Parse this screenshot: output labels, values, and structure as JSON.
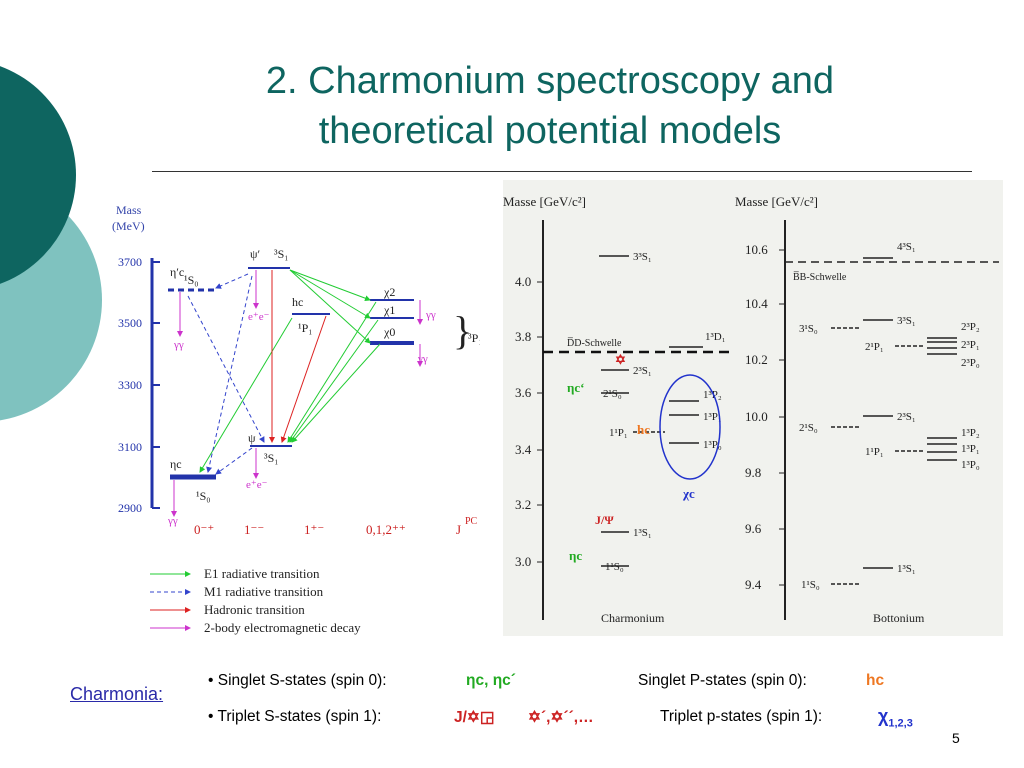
{
  "slide": {
    "title_line1": "2. Charmonium spectroscopy and",
    "title_line2": "theoretical potential models",
    "page_number": "5",
    "theme_colors": {
      "teal_dark": "#0e6560",
      "teal_light": "#7fc2bf",
      "link_blue": "#2a2aa8"
    }
  },
  "left_diagram": {
    "axis_title": "Mass",
    "axis_unit": "(MeV)",
    "ticks": [
      "3700",
      "3500",
      "3300",
      "3100",
      "2900"
    ],
    "jpc_labels": [
      "0⁻⁺",
      "1⁻⁻",
      "1⁺⁻",
      "0,1,2⁺⁺",
      "J"
    ],
    "jpc_header": "PC",
    "states": {
      "eta_c_prime": "η′c",
      "psi_prime": "ψ′",
      "h_c": "hc",
      "chi2": "χ2",
      "chi1": "χ1",
      "chi0": "χ0",
      "eta_c": "ηc",
      "psi": "ψ",
      "s_3s1": "³S₁",
      "s_1s0": "¹S₀",
      "p_1p1": "¹P₁",
      "p_3pj": "³P₁"
    },
    "decay_labels": {
      "gg": "γγ",
      "ee": "e⁺e⁻"
    },
    "legend": [
      {
        "label": "E1 radiative transition",
        "color": "#22cc33"
      },
      {
        "label": "M1 radiative transition",
        "color": "#3344cc"
      },
      {
        "label": "Hadronic transition",
        "color": "#dd2222"
      },
      {
        "label": "2-body electromagnetic decay",
        "color": "#cc33cc"
      }
    ]
  },
  "right_diagram": {
    "panels": [
      {
        "name": "Charmonium",
        "axis": "Masse [GeV/c²]",
        "ticks": [
          "4.0",
          "3.8",
          "3.6",
          "3.4",
          "3.2",
          "3.0"
        ],
        "threshold": "D̅D-Schwelle"
      },
      {
        "name": "Bottonium",
        "axis": "Masse [GeV/c²]",
        "ticks": [
          "10.6",
          "10.4",
          "10.2",
          "10.0",
          "9.8",
          "9.6",
          "9.4"
        ],
        "threshold": "B̅B-Schwelle"
      }
    ],
    "charm_states": [
      "3³S₁",
      "1³D₁",
      "2³S₁",
      "2¹S₀",
      "1³P₂",
      "1³P₁",
      "1¹P₁",
      "1³P₀",
      "1³S₁",
      "1¹S₀"
    ],
    "bottom_states": [
      "4³S₁",
      "3³S₁",
      "3¹S₀",
      "2³P₂",
      "2¹P₁",
      "2³P₁",
      "2³P₀",
      "2³S₁",
      "2¹S₀",
      "1³P₂",
      "1¹P₁",
      "1³P₁",
      "1³P₀",
      "1³S₁",
      "1¹S₀"
    ],
    "annotations": {
      "psi_star": "✡",
      "eta_c_prime": "ηc‘",
      "h_c": "hc",
      "chi_c": "χc",
      "jpsi": "J/Ψ",
      "eta_c": "ηc"
    }
  },
  "bottom": {
    "link": "Charmonia:",
    "line1_left": "• Singlet S-states (spin 0):",
    "line1_sym": "ηc, ηc´",
    "line1_right": "Singlet P-states (spin 0):",
    "line1_right_sym": "hc",
    "line2_left": "• Triplet S-states (spin 1):",
    "line2_sym_a": "J/✡◲",
    "line2_sym_b": "✡´,✡´´,…",
    "line2_right": "Triplet p-states (spin 1):",
    "line2_right_sym": "χ",
    "line2_right_sub": "1,2,3"
  }
}
